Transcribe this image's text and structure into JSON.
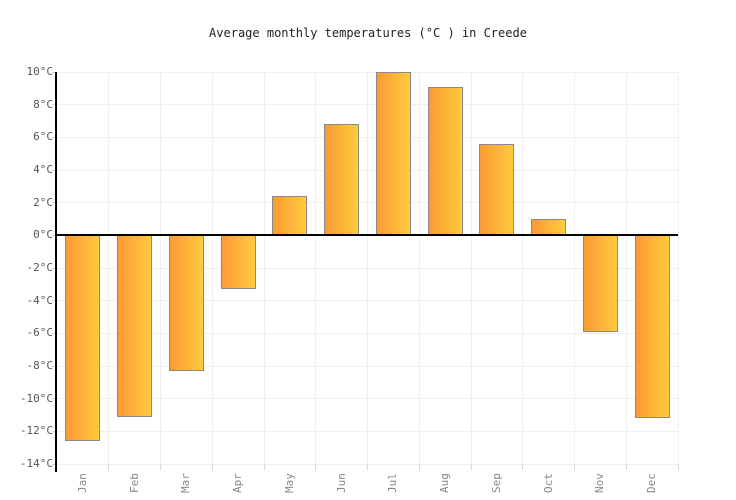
{
  "chart_data": {
    "type": "bar",
    "title": "Average monthly temperatures (°C ) in Creede",
    "categories": [
      "Jan",
      "Feb",
      "Mar",
      "Apr",
      "May",
      "Jun",
      "Jul",
      "Aug",
      "Sep",
      "Oct",
      "Nov",
      "Dec"
    ],
    "values": [
      -12.6,
      -11.1,
      -8.3,
      -3.3,
      2.4,
      6.8,
      10,
      9.1,
      5.6,
      1,
      -5.9,
      -11.2
    ],
    "xlabel": "",
    "ylabel": "",
    "ylim": [
      -14,
      10
    ],
    "ytick_step": 2,
    "ytick_suffix": "°C",
    "grid": true,
    "legend_position": "none",
    "colors": {
      "bar_gradient_left": "#FB9A33",
      "bar_gradient_right": "#FFCA3F",
      "bar_border": "#8A8A8A",
      "gridline": "#EFEFEF",
      "axis": "#000000",
      "tick": "#D8D8D8",
      "title_text": "#222222",
      "ytick_text": "#555555",
      "xtick_text": "#888888",
      "background": "#FFFFFF"
    }
  }
}
